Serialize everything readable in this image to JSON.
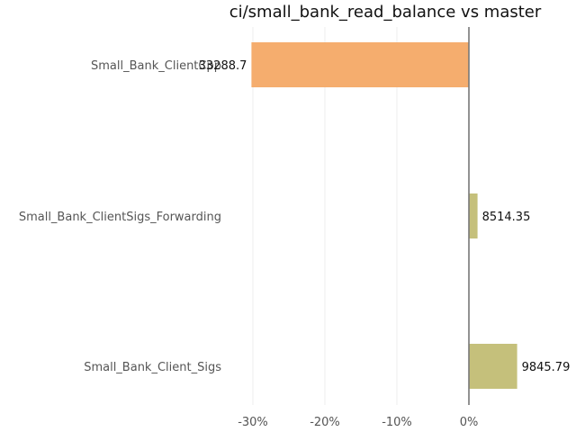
{
  "chart_data": {
    "type": "bar",
    "orientation": "horizontal",
    "title": "ci/small_bank_read_balance vs master",
    "xlabel": "",
    "ylabel": "",
    "categories": [
      "Small_Bank_ClientCpp",
      "Small_Bank_ClientSigs_Forwarding",
      "Small_Bank_Client_Sigs"
    ],
    "values": [
      -30.2,
      1.2,
      6.7
    ],
    "data_labels": [
      "33288.7",
      "8514.35",
      "9845.79"
    ],
    "bar_colors": [
      "#f5ad6e",
      "#c5c07b",
      "#c5c07b"
    ],
    "xlim": [
      -33,
      15
    ],
    "xticks": [
      -30,
      -20,
      -10,
      0
    ],
    "xtick_labels": [
      "-30%",
      "-20%",
      "-10%",
      "0%"
    ],
    "grid": true,
    "zero_line_color": "#777777"
  }
}
